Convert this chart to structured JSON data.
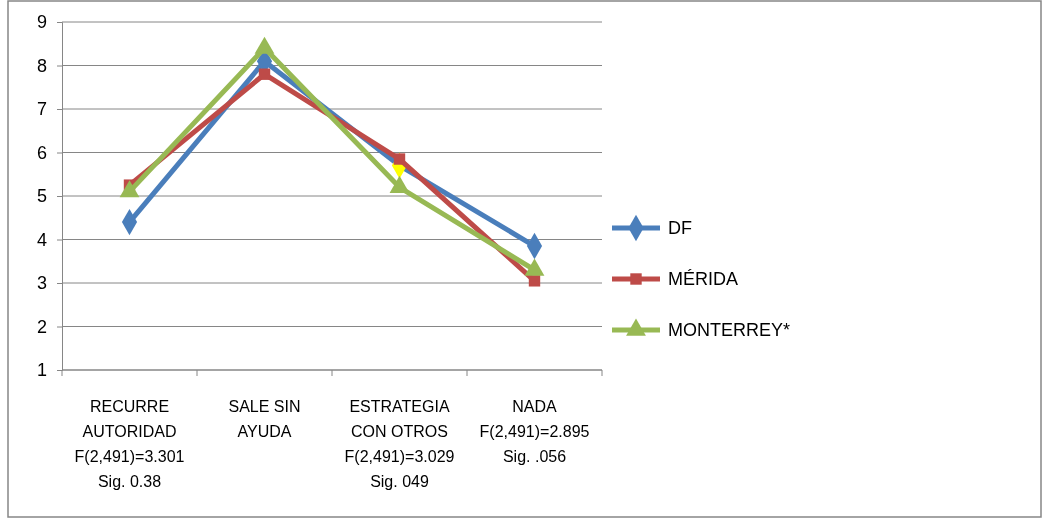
{
  "chart_data": {
    "type": "line",
    "categories": [
      "RECURRE\nAUTORIDAD\nF(2,491)=3.301\nSig. 0.38",
      "SALE SIN\nAYUDA",
      "ESTRATEGIA\nCON OTROS\nF(2,491)=3.029\nSig. 049",
      "NADA\nF(2,491)=2.895\nSig. .056"
    ],
    "series": [
      {
        "name": "DF",
        "color": "#4a7ebb",
        "marker": "diamond",
        "values": [
          4.4,
          8.1,
          5.7,
          3.85
        ],
        "colors": [
          "#4a7ebb",
          "#4a7ebb",
          "#ffff00",
          "#4a7ebb"
        ]
      },
      {
        "name": "MÉRIDA",
        "color": "#be4b48",
        "marker": "square",
        "values": [
          5.25,
          7.8,
          5.85,
          3.05
        ]
      },
      {
        "name": "MONTERREY*",
        "color": "#98b954",
        "marker": "triangle",
        "values": [
          5.1,
          8.4,
          5.2,
          3.3
        ]
      }
    ],
    "ylim": [
      1,
      9
    ],
    "yticks": [
      1,
      2,
      3,
      4,
      5,
      6,
      7,
      8,
      9
    ],
    "grid": "y",
    "legend": "right"
  }
}
